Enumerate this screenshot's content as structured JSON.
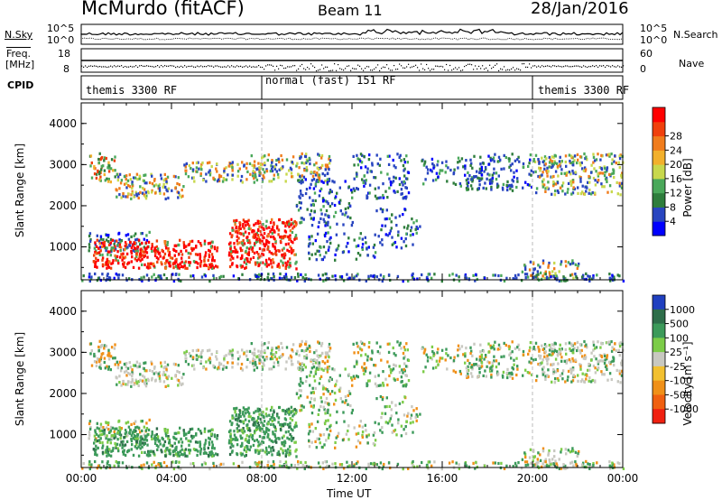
{
  "header": {
    "station": "McMurdo (fitACF)",
    "beam": "Beam 11",
    "date": "28/Jan/2016"
  },
  "side_labels": {
    "nsky": "N.Sky",
    "freq_line1": "Freq.",
    "freq_line2": "[MHz]",
    "cpid": "CPID",
    "nsearch": "N.Search",
    "nave": "Nave"
  },
  "mini_axes": {
    "nsky_ticks": [
      "10^5",
      "10^0"
    ],
    "freq_ticks": [
      "18",
      "8"
    ],
    "nsearch_ticks": [
      "10^5",
      "10^0"
    ],
    "nave_ticks": [
      "60",
      "0"
    ]
  },
  "cpid_segments": [
    {
      "label": "themis 3300 RF",
      "start_hour": 0,
      "end_hour": 8
    },
    {
      "label": "normal (fast) 151 RF",
      "start_hour": 8,
      "end_hour": 20
    },
    {
      "label": "themis 3300 RF",
      "start_hour": 20,
      "end_hour": 24
    }
  ],
  "time_axis": {
    "label": "Time UT",
    "ticks": [
      "00:00",
      "04:00",
      "08:00",
      "12:00",
      "16:00",
      "20:00",
      "00:00"
    ],
    "range_hours": [
      0,
      24
    ]
  },
  "chart_data": [
    {
      "type": "heatmap",
      "quantity": "Power",
      "ylabel": "Slant Range [km]",
      "yticks": [
        "1000",
        "2000",
        "3000",
        "4000"
      ],
      "ylim_km": [
        200,
        4500
      ],
      "colorbar": {
        "label": "Power [dB]",
        "ticks": [
          "4",
          "8",
          "12",
          "16",
          "20",
          "24",
          "28"
        ],
        "colors": [
          "#0000ff",
          "#2845c0",
          "#2e7d3c",
          "#4aa85a",
          "#c8d84c",
          "#f2b02c",
          "#f07c1c",
          "#f0400c",
          "#ff0000"
        ]
      }
    },
    {
      "type": "heatmap",
      "quantity": "Velocity",
      "ylabel": "Slant Range [km]",
      "yticks": [
        "1000",
        "2000",
        "3000",
        "4000"
      ],
      "ylim_km": [
        200,
        4500
      ],
      "colorbar": {
        "label": "Velocity [m s⁻¹]",
        "ticks": [
          "1000",
          "500",
          "100",
          "25",
          "-25",
          "-100",
          "-500",
          "-1000"
        ],
        "colors": [
          "#2040c0",
          "#2e6e4a",
          "#3c9a5a",
          "#7ccc48",
          "#c8c8c0",
          "#f2c030",
          "#f09018",
          "#f06010",
          "#f02010"
        ]
      }
    }
  ],
  "colors": {
    "axis": "#000000",
    "grid": "#bbbbbb"
  }
}
